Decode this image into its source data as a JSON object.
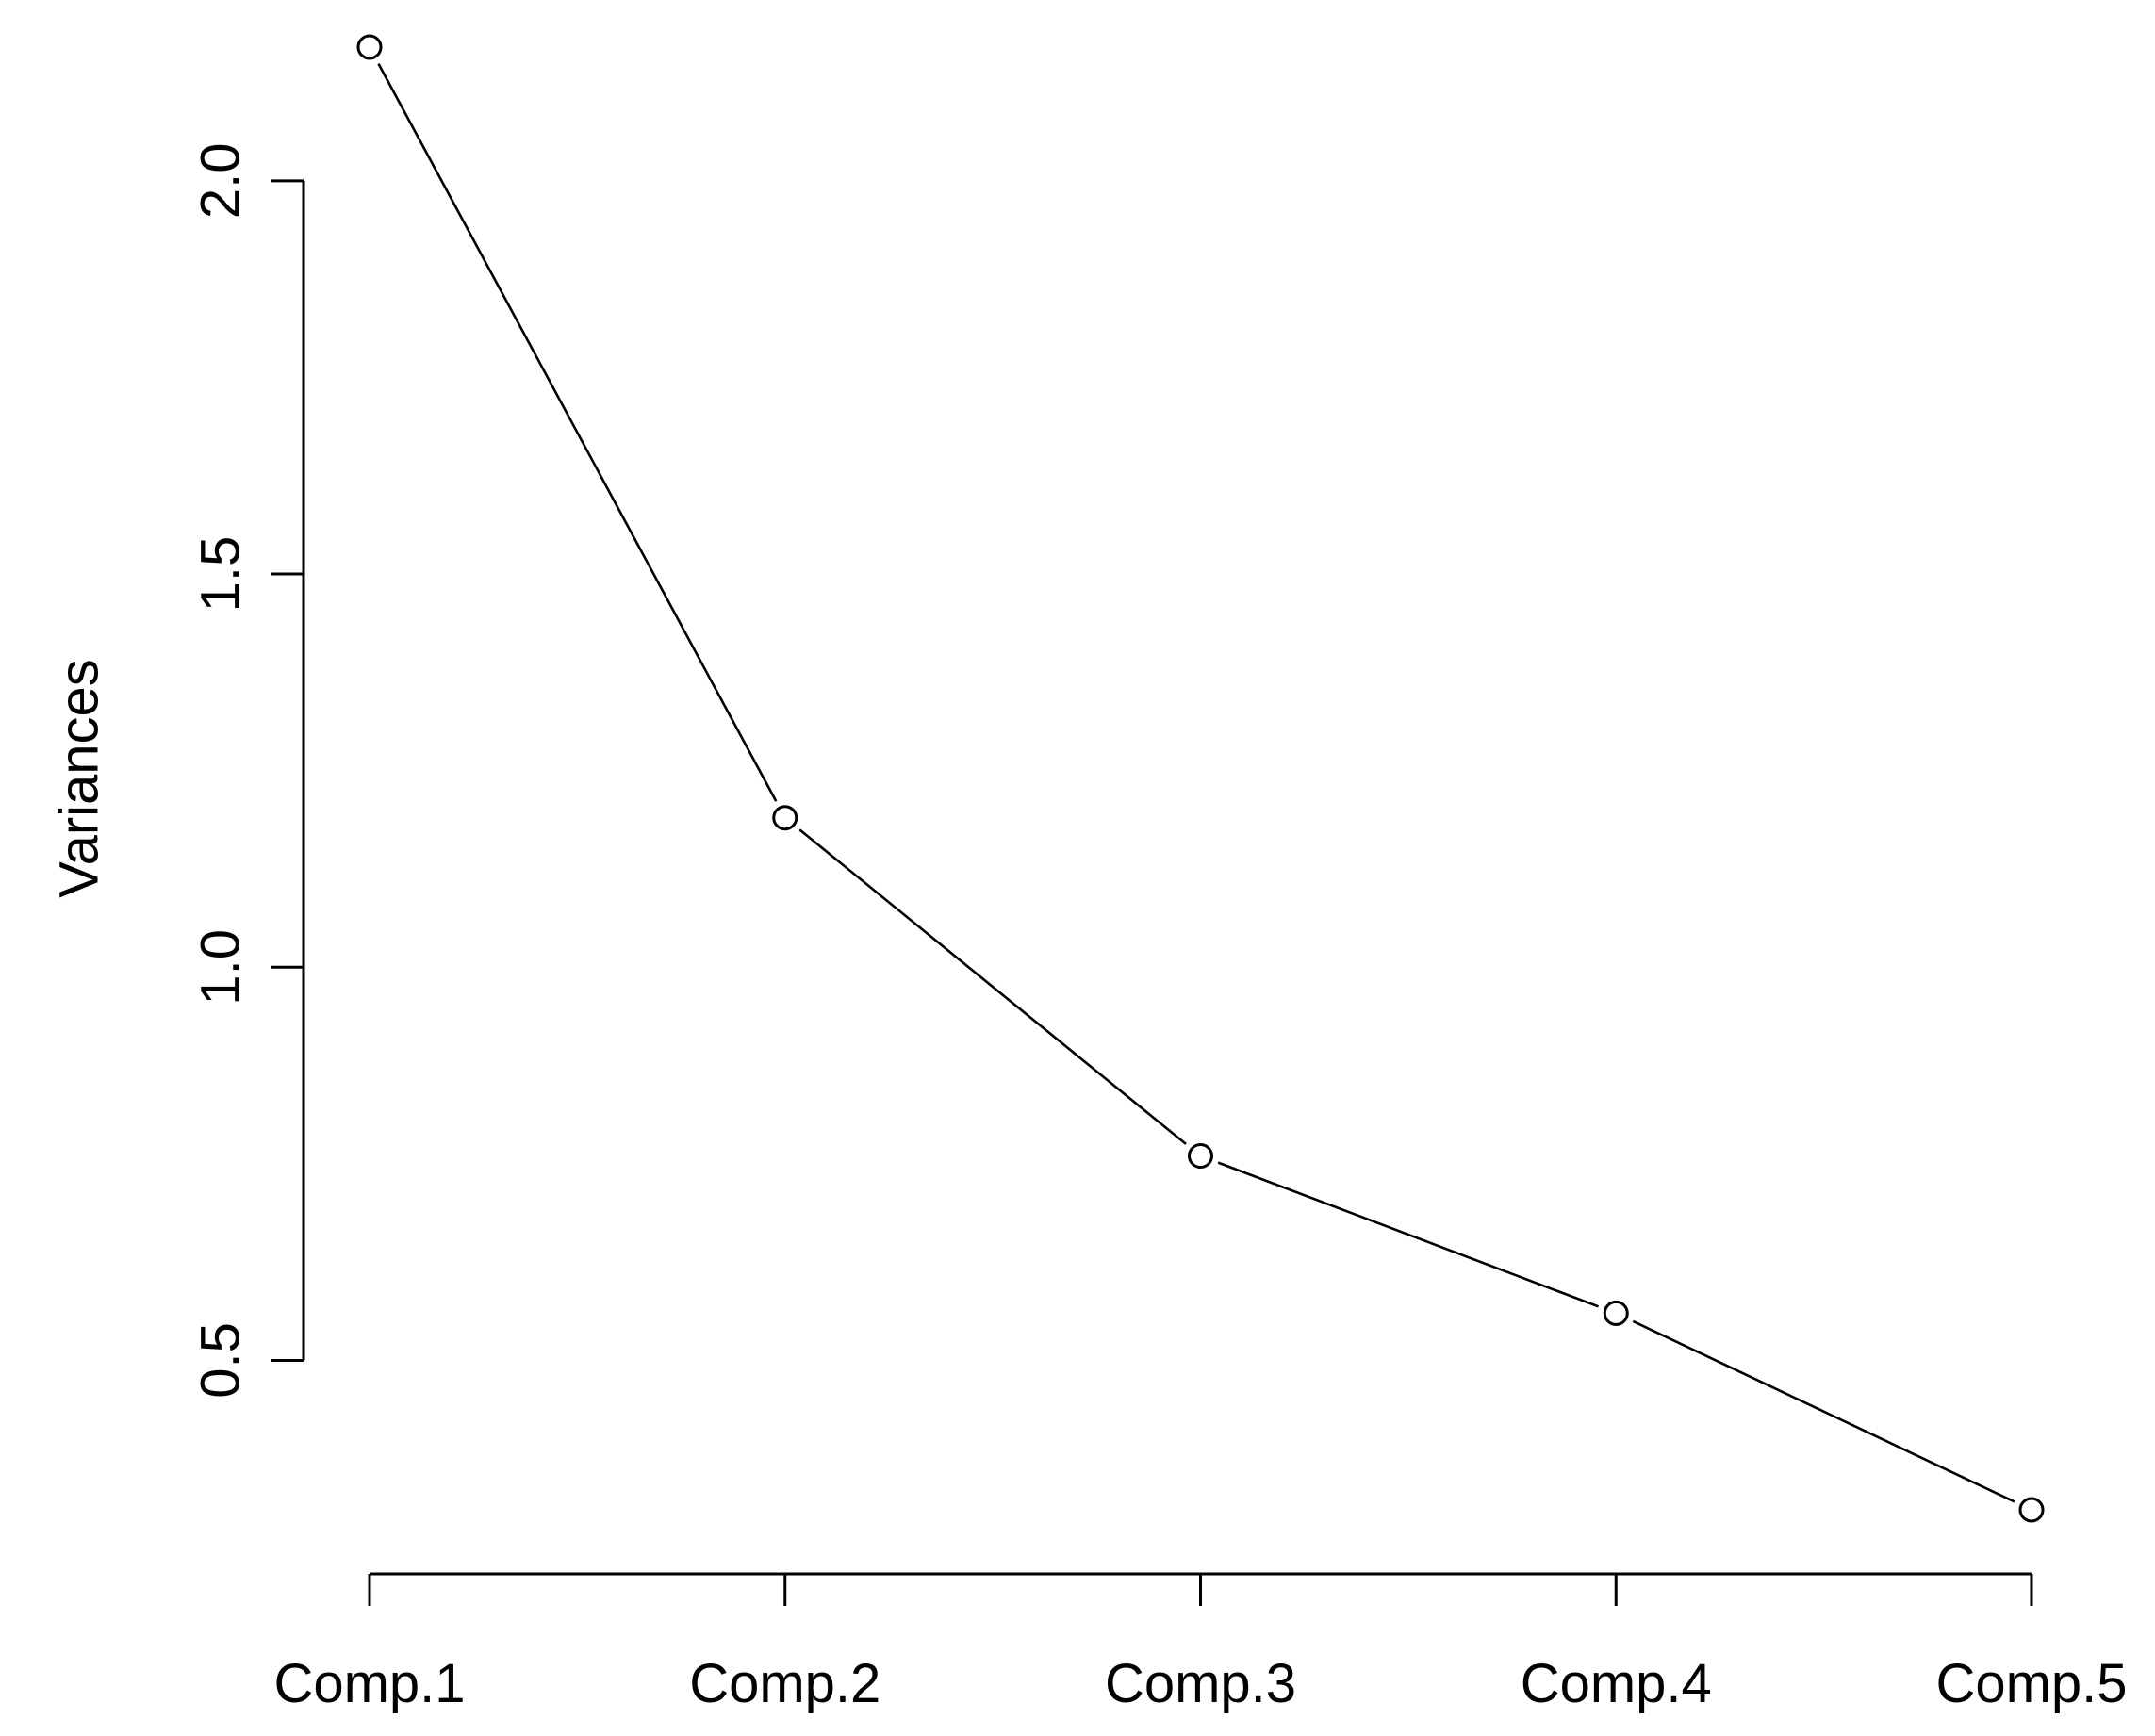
{
  "chart_data": {
    "type": "line",
    "title": "",
    "xlabel": "",
    "ylabel": "Variances",
    "categories": [
      "Comp.1",
      "Comp.2",
      "Comp.3",
      "Comp.4",
      "Comp.5"
    ],
    "values": [
      2.17,
      1.19,
      0.76,
      0.56,
      0.31
    ],
    "yticks": [
      0.5,
      1.0,
      1.5,
      2.0
    ],
    "ytick_labels": [
      "0.5",
      "1.0",
      "1.5",
      "2.0"
    ],
    "ylim": [
      0.31,
      2.17
    ],
    "grid": false,
    "marker": "open-circle",
    "line_color": "#000000"
  }
}
